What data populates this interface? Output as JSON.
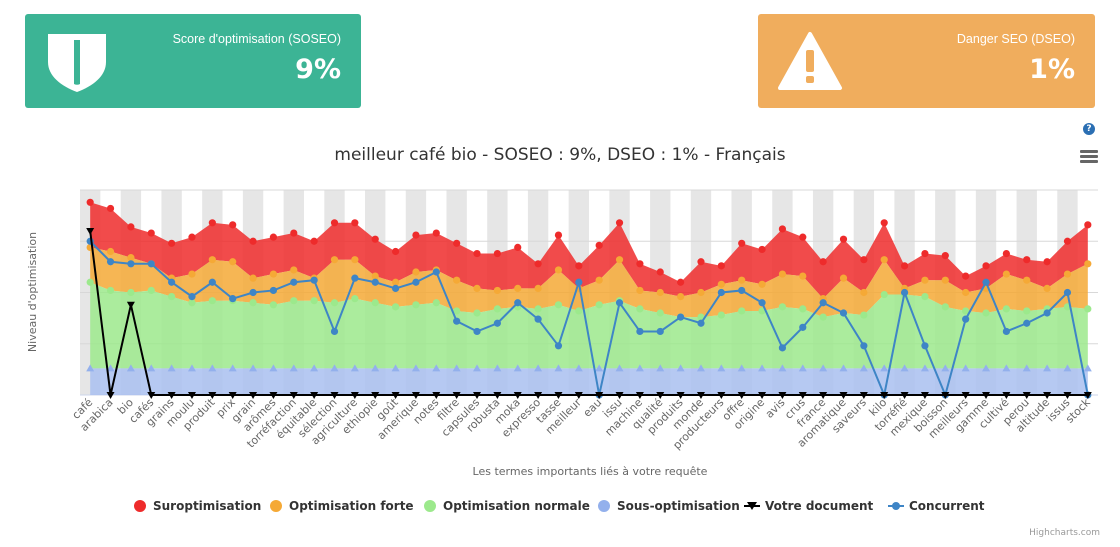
{
  "cards": {
    "soseo": {
      "title": "Score d'optimisation (SOSEO)",
      "value": "9%",
      "color": "#3cb495",
      "icon": "shield-icon"
    },
    "dseo": {
      "title": "Danger SEO (DSEO)",
      "value": "1%",
      "color": "#f0ad5d",
      "icon": "warning-icon"
    }
  },
  "toolbar": {
    "help_label": "?",
    "menu_icon": "hamburger-menu-icon"
  },
  "credits": "Highcharts.com",
  "chart_data": {
    "type": "area",
    "title": "meilleur café bio - SOSEO : 9%, DSEO : 1% - Français",
    "xlabel": "Les termes importants liés à votre requête",
    "ylabel": "Niveau d'optimisation",
    "ylim": [
      0,
      100
    ],
    "grid": true,
    "legend_position": "bottom",
    "categories": [
      "café",
      "arabica",
      "bio",
      "cafés",
      "grains",
      "moulu",
      "produit",
      "prix",
      "grain",
      "arômes",
      "torréfaction",
      "équitable",
      "sélection",
      "agriculture",
      "ethiopie",
      "goût",
      "amerique",
      "notes",
      "filtre",
      "capsules",
      "robusta",
      "moka",
      "expresso",
      "tasse",
      "meilleur",
      "eau",
      "issu",
      "machine",
      "qualité",
      "produits",
      "monde",
      "producteurs",
      "offre",
      "origine",
      "avis",
      "crus",
      "france",
      "aromatique",
      "saveurs",
      "kilo",
      "torréfié",
      "mexique",
      "boisson",
      "meilleurs",
      "gamme",
      "cultivé",
      "perou",
      "altitude",
      "issus",
      "stock"
    ],
    "series": [
      {
        "name": "Suroptimisation",
        "color": "#ee2b2b",
        "values": [
          94,
          91,
          82,
          79,
          74,
          77,
          84,
          83,
          75,
          77,
          79,
          75,
          84,
          84,
          76,
          70,
          78,
          79,
          74,
          69,
          69,
          72,
          64,
          78,
          63,
          73,
          84,
          64,
          60,
          55,
          65,
          63,
          74,
          71,
          81,
          77,
          65,
          76,
          66,
          84,
          63,
          69,
          68,
          58,
          63,
          69,
          66,
          65,
          75,
          83
        ]
      },
      {
        "name": "Optimisation forte",
        "color": "#f5a936",
        "values": [
          72,
          70,
          67,
          64,
          57,
          59,
          66,
          65,
          57,
          59,
          61,
          57,
          66,
          66,
          58,
          55,
          60,
          61,
          56,
          52,
          51,
          52,
          52,
          61,
          52,
          56,
          66,
          51,
          50,
          48,
          50,
          54,
          56,
          54,
          59,
          58,
          47,
          57,
          50,
          66,
          52,
          56,
          56,
          50,
          52,
          59,
          56,
          52,
          59,
          64
        ]
      },
      {
        "name": "Optimisation normale",
        "color": "#9ce98c",
        "values": [
          55,
          51,
          50,
          51,
          48,
          45,
          46,
          46,
          45,
          44,
          46,
          46,
          45,
          47,
          45,
          43,
          44,
          45,
          41,
          40,
          42,
          43,
          42,
          44,
          41,
          44,
          46,
          42,
          40,
          38,
          38,
          39,
          41,
          41,
          43,
          42,
          38,
          40,
          39,
          49,
          49,
          48,
          43,
          41,
          40,
          42,
          41,
          42,
          43,
          42
        ]
      },
      {
        "name": "Sous-optimisation",
        "color": "#93b0ec",
        "values": [
          13,
          13,
          13,
          13,
          13,
          13,
          13,
          13,
          13,
          13,
          13,
          13,
          13,
          13,
          13,
          13,
          13,
          13,
          13,
          13,
          13,
          13,
          13,
          13,
          13,
          13,
          13,
          13,
          13,
          13,
          13,
          13,
          13,
          13,
          13,
          13,
          13,
          13,
          13,
          13,
          13,
          13,
          13,
          13,
          13,
          13,
          13,
          13,
          13,
          13
        ]
      },
      {
        "name": "Votre document",
        "color": "#000000",
        "values": [
          80,
          0,
          44,
          0,
          0,
          0,
          0,
          0,
          0,
          0,
          0,
          0,
          0,
          0,
          0,
          0,
          0,
          0,
          0,
          0,
          0,
          0,
          0,
          0,
          0,
          0,
          0,
          0,
          0,
          0,
          0,
          0,
          0,
          0,
          0,
          0,
          0,
          0,
          0,
          0,
          0,
          0,
          0,
          0,
          0,
          0,
          0,
          0,
          0,
          0
        ]
      },
      {
        "name": "Concurrent",
        "color": "#3e85c6",
        "values": [
          75,
          65,
          64,
          64,
          55,
          48,
          55,
          47,
          50,
          51,
          55,
          56,
          31,
          57,
          55,
          52,
          55,
          60,
          36,
          31,
          35,
          45,
          37,
          24,
          55,
          0,
          45,
          31,
          31,
          38,
          35,
          50,
          51,
          45,
          23,
          33,
          45,
          40,
          24,
          0,
          50,
          24,
          0,
          37,
          55,
          31,
          35,
          40,
          50,
          0
        ]
      }
    ]
  }
}
